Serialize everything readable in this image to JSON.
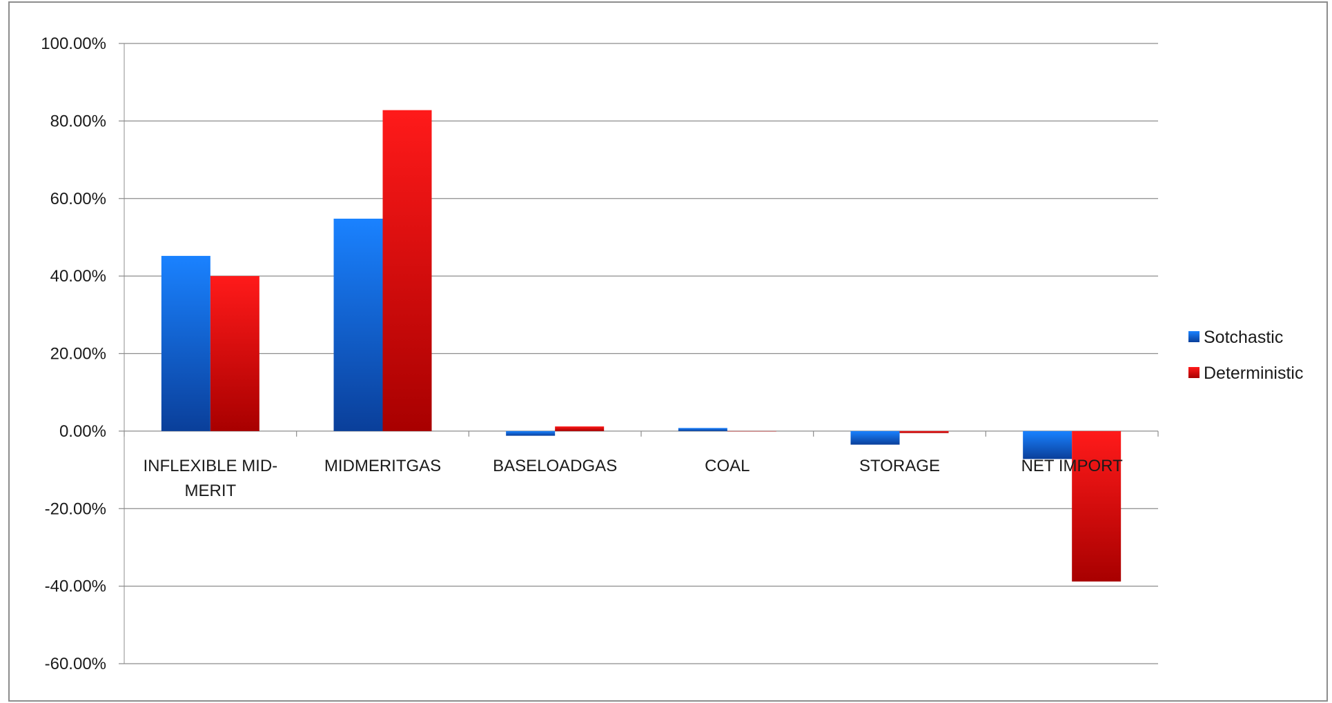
{
  "chart_data": {
    "type": "bar",
    "title": "",
    "xlabel": "",
    "ylabel": "",
    "categories": [
      [
        "INFLEXIBLE MID-",
        "MERIT"
      ],
      [
        "MIDMERITGAS"
      ],
      [
        "BASELOADGAS"
      ],
      [
        "COAL"
      ],
      [
        "STORAGE"
      ],
      [
        "NET IMPORT"
      ]
    ],
    "series": [
      {
        "name": "Sotchastic",
        "color_light": "#1a82ff",
        "color_dark": "#0a3f9a",
        "values": [
          45.2,
          54.8,
          -1.2,
          0.8,
          -3.5,
          -7.2
        ]
      },
      {
        "name": "Deterministic",
        "color_light": "#ff1a1a",
        "color_dark": "#a80000",
        "values": [
          40.0,
          82.8,
          1.2,
          0.0,
          -0.5,
          -38.8
        ]
      }
    ],
    "ylim": [
      -60,
      100
    ],
    "yticks": [
      100,
      80,
      60,
      40,
      20,
      0,
      -20,
      -40,
      -60
    ],
    "ytick_labels": [
      "100.00%",
      "80.00%",
      "60.00%",
      "40.00%",
      "20.00%",
      "0.00%",
      "-20.00%",
      "-40.00%",
      "-60.00%"
    ],
    "grid": true,
    "legend_position": "right"
  }
}
